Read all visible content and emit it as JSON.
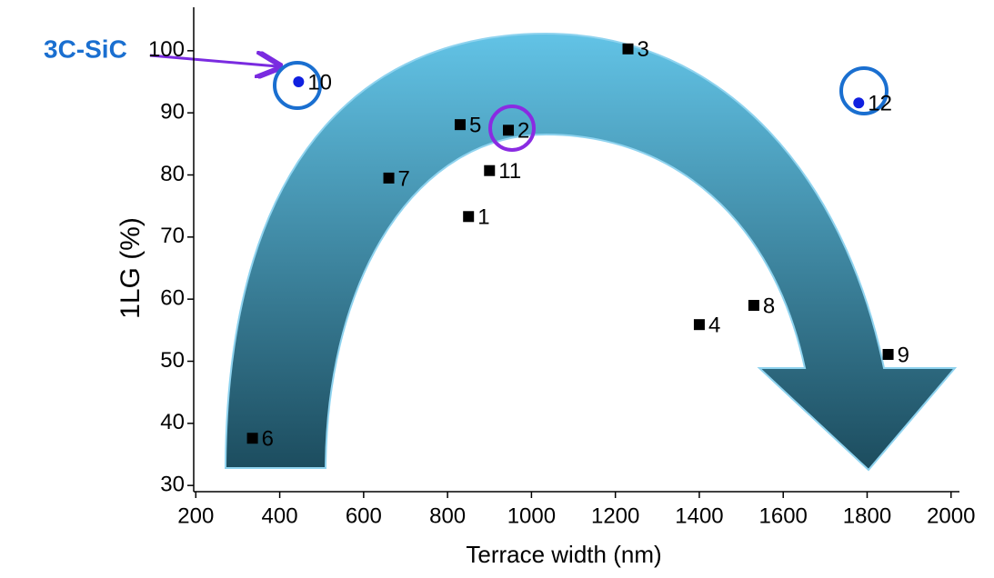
{
  "chart_data": {
    "type": "scatter",
    "x_label": "Terrace width (nm)",
    "y_label": "1LG (%)",
    "annotation": "3C-SiC",
    "series": [
      {
        "x": [
          850,
          945,
          1230,
          1400,
          830,
          335,
          660,
          1530,
          1850,
          445,
          900,
          1780
        ],
        "values": [
          73.3,
          87.2,
          100.3,
          55.9,
          88.1,
          37.6,
          79.5,
          59,
          51.1,
          95,
          80.7,
          91.6
        ],
        "labels": [
          "1",
          "2",
          "3",
          "4",
          "5",
          "6",
          "7",
          "8",
          "9",
          "10",
          "11",
          "12"
        ],
        "colors": [
          "#000000",
          "#000000",
          "#000000",
          "#000000",
          "#000000",
          "#000000",
          "#000000",
          "#000000",
          "#000000",
          "#1020e0",
          "#000000",
          "#1020e0"
        ],
        "markers": [
          "square",
          "square",
          "square",
          "square",
          "square",
          "square",
          "square",
          "square",
          "square",
          "circle",
          "square",
          "circle"
        ]
      }
    ],
    "xlim": [
      195,
      2020
    ],
    "xticks": [
      200,
      400,
      600,
      800,
      1000,
      1200,
      1400,
      1600,
      1800,
      2000
    ],
    "ylim": [
      29,
      107
    ],
    "yticks": [
      30,
      40,
      50,
      60,
      70,
      80,
      90,
      100
    ]
  }
}
